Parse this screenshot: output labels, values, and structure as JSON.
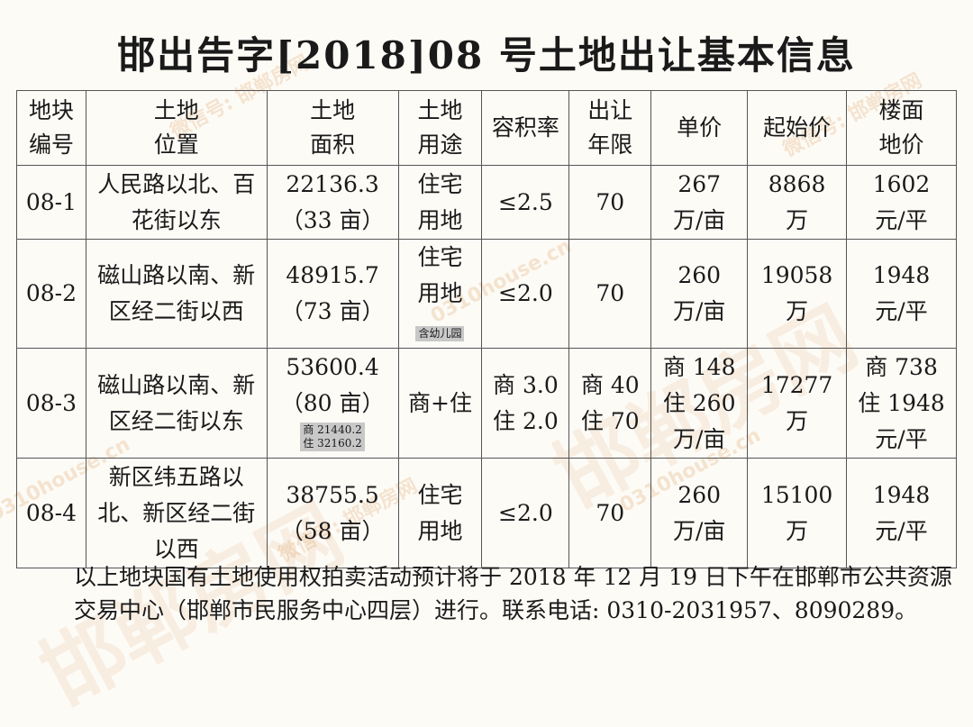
{
  "title": "邯出告字[2018]08 号土地出让基本信息",
  "watermarks": [
    "微信号: 邯郸房网",
    "0310house.cn",
    "邯郸房网"
  ],
  "table": {
    "headers": [
      "地块\n编号",
      "土地\n位置",
      "土地\n面积",
      "土地\n用途",
      "容积率",
      "出让\n年限",
      "单价",
      "起始价",
      "楼面\n地价"
    ],
    "rows": [
      {
        "id": "08-1",
        "location": "人民路以北、百花街以东",
        "area": "22136.3",
        "area_mu": "（33 亩）",
        "area_note": "",
        "use": "住宅\n用地",
        "use_note": "",
        "far": "≤2.5",
        "term": "70",
        "unit_price": "267\n万/亩",
        "start_price": "8868\n万",
        "floor_price": "1602\n元/平"
      },
      {
        "id": "08-2",
        "location": "磁山路以南、新区经二街以西",
        "area": "48915.7",
        "area_mu": "（73 亩）",
        "area_note": "",
        "use": "住宅\n用地",
        "use_note": "含幼儿园",
        "far": "≤2.0",
        "term": "70",
        "unit_price": "260\n万/亩",
        "start_price": "19058\n万",
        "floor_price": "1948\n元/平"
      },
      {
        "id": "08-3",
        "location": "磁山路以南、新区经二街以东",
        "area": "53600.4",
        "area_mu": "（80 亩）",
        "area_note": "商 21440.2\n住 32160.2",
        "use": "商+住",
        "use_note": "",
        "far": "商 3.0\n住 2.0",
        "term": "商 40\n住 70",
        "unit_price": "商 148\n住 260\n万/亩",
        "start_price": "17277\n万",
        "floor_price": "商 738\n住 1948\n元/平"
      },
      {
        "id": "08-4",
        "location": "新区纬五路以北、新区经二街以西",
        "area": "38755.5",
        "area_mu": "（58 亩）",
        "area_note": "",
        "use": "住宅\n用地",
        "use_note": "",
        "far": "≤2.0",
        "term": "70",
        "unit_price": "260\n万/亩",
        "start_price": "15100\n万",
        "floor_price": "1948\n元/平"
      }
    ]
  },
  "footer": {
    "text": "以上地块国有土地使用权拍卖活动预计将于 2018 年 12 月 19 日下午在邯郸市公共资源交易中心（邯郸市民服务中心四层）进行。联系电话: 0310-2031957、8090289。"
  }
}
